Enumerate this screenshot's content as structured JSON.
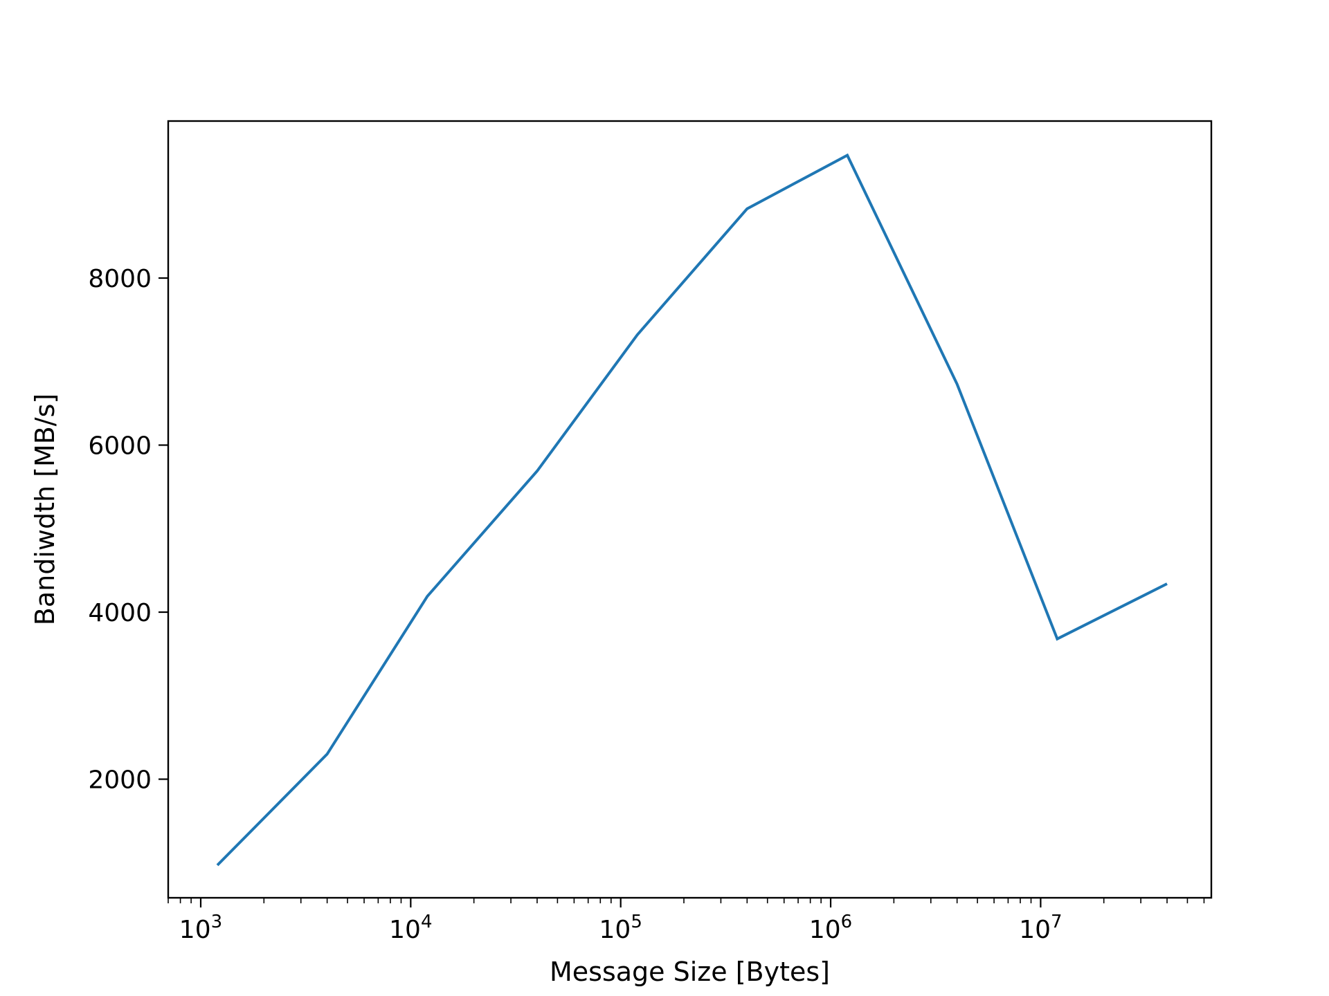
{
  "chart_data": {
    "type": "line",
    "title": "",
    "xlabel": "Message Size [Bytes]",
    "ylabel": "Bandiwdth [MB/s]",
    "x_scale": "log",
    "xlim": [
      700,
      65000000
    ],
    "ylim": [
      580,
      9880
    ],
    "x_major_ticks": [
      1000,
      10000,
      100000,
      1000000,
      10000000
    ],
    "x_tick_labels": [
      {
        "base": "10",
        "exp": "3"
      },
      {
        "base": "10",
        "exp": "4"
      },
      {
        "base": "10",
        "exp": "5"
      },
      {
        "base": "10",
        "exp": "6"
      },
      {
        "base": "10",
        "exp": "7"
      }
    ],
    "y_ticks": [
      2000,
      4000,
      6000,
      8000
    ],
    "y_tick_labels": [
      "2000",
      "4000",
      "6000",
      "8000"
    ],
    "grid": false,
    "legend": false,
    "line_color": "#1f77b4",
    "series": [
      {
        "x": [
          1200,
          4000,
          12000,
          40000,
          120000,
          400000,
          1200000,
          4000000,
          12000000,
          40000000
        ],
        "y": [
          970,
          2300,
          4190,
          5690,
          7320,
          8830,
          9470,
          6730,
          3680,
          4340
        ]
      }
    ]
  }
}
